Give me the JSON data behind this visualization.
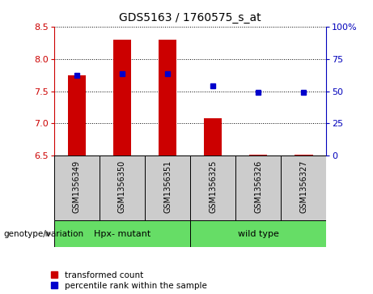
{
  "title": "GDS5163 / 1760575_s_at",
  "samples": [
    "GSM1356349",
    "GSM1356350",
    "GSM1356351",
    "GSM1356325",
    "GSM1356326",
    "GSM1356327"
  ],
  "transformed_count": [
    7.75,
    8.3,
    8.3,
    7.08,
    6.52,
    6.52
  ],
  "percentile_rank": [
    7.75,
    7.77,
    7.77,
    7.58,
    7.48,
    7.48
  ],
  "ylim_left": [
    6.5,
    8.5
  ],
  "ylim_right": [
    0,
    100
  ],
  "yticks_left": [
    6.5,
    7.0,
    7.5,
    8.0,
    8.5
  ],
  "yticks_right": [
    0,
    25,
    50,
    75,
    100
  ],
  "ytick_labels_right": [
    "0",
    "25",
    "50",
    "75",
    "100%"
  ],
  "bar_color": "#CC0000",
  "dot_color": "#0000CC",
  "bar_width": 0.4,
  "baseline": 6.5,
  "background_color": "#FFFFFF",
  "panel_bg": "#CCCCCC",
  "green_color": "#66DD66",
  "left_label_color": "#CC0000",
  "right_label_color": "#0000BB",
  "genotype_label": "genotype/variation",
  "group1_label": "Hpx- mutant",
  "group2_label": "wild type",
  "legend_label1": "transformed count",
  "legend_label2": "percentile rank within the sample",
  "title_fontsize": 10,
  "axis_fontsize": 8,
  "label_fontsize": 7,
  "legend_fontsize": 7.5
}
